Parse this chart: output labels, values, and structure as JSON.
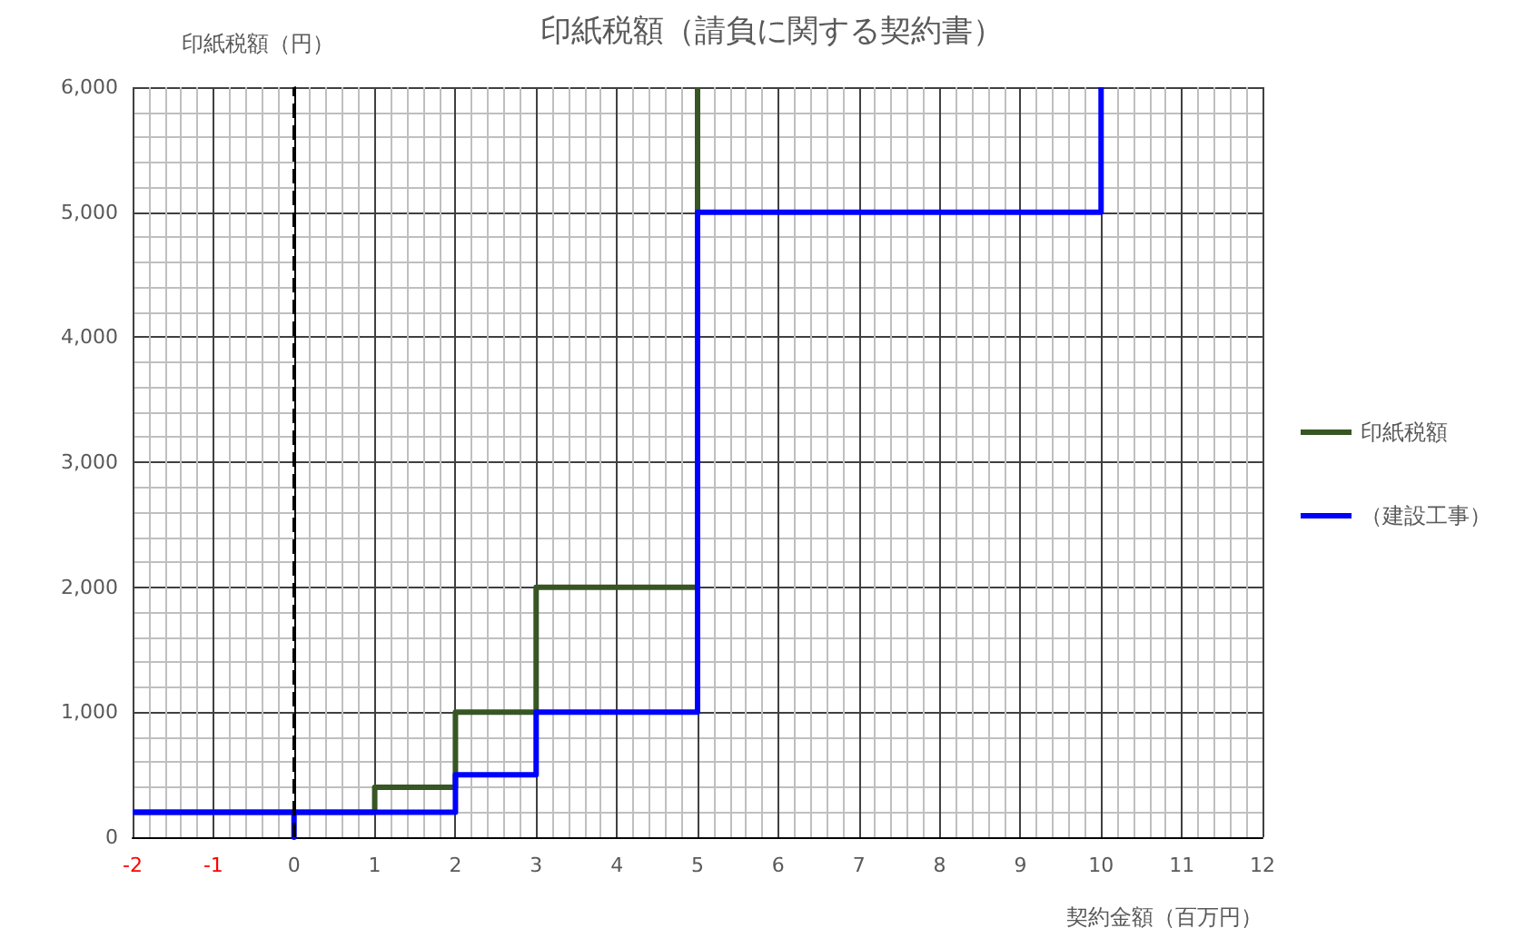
{
  "chart_data": {
    "type": "line",
    "title": "印紙税額（請負に関する契約書）",
    "xlabel": "契約金額（百万円）",
    "ylabel": "印紙税額（円）",
    "xlim": [
      -2,
      12
    ],
    "xticks": [
      -2,
      -1,
      0,
      1,
      2,
      3,
      4,
      5,
      6,
      7,
      8,
      9,
      10,
      11,
      12
    ],
    "ylim": [
      0,
      6000
    ],
    "yticks": [
      {
        "value": 0,
        "label": "0"
      },
      {
        "value": 1000,
        "label": "1,000"
      },
      {
        "value": 2000,
        "label": "2,000"
      },
      {
        "value": 3000,
        "label": "3,000"
      },
      {
        "value": 4000,
        "label": "4,000"
      },
      {
        "value": 5000,
        "label": "5,000"
      },
      {
        "value": 6000,
        "label": "6,000"
      }
    ],
    "series": [
      {
        "name": "印紙税額",
        "color": "#375623",
        "x": [
          -2,
          1,
          1,
          2,
          2,
          3,
          3,
          5,
          5
        ],
        "values": [
          200,
          200,
          400,
          400,
          1000,
          1000,
          2000,
          2000,
          6000
        ]
      },
      {
        "name": "（建設工事）",
        "color": "#0000ff",
        "x": [
          -2,
          0,
          0,
          0,
          2,
          2,
          3,
          3,
          5,
          5,
          10,
          10
        ],
        "values": [
          200,
          200,
          0,
          200,
          200,
          500,
          500,
          1000,
          1000,
          5000,
          5000,
          6000
        ]
      }
    ],
    "ref_lines": [
      {
        "axis": "x",
        "value": 0,
        "color": "#000000",
        "line_style": "dashed"
      }
    ],
    "grid": true,
    "legend": "right",
    "marker": "none",
    "line_style": "solid"
  }
}
